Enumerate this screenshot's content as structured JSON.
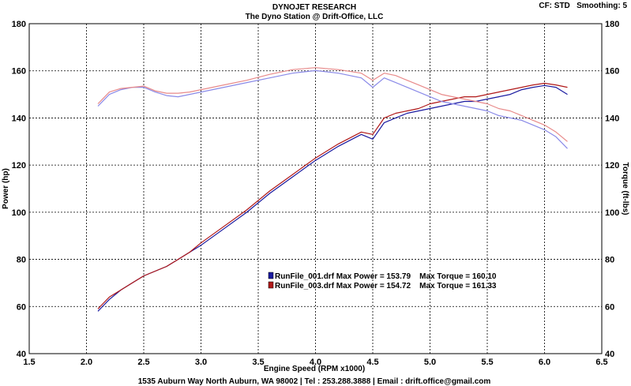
{
  "header": {
    "title": "DYNOJET RESEARCH",
    "subtitle": "The Dyno Station @ Drift-Office, LLC",
    "settings": "CF: STD   Smoothing: 5"
  },
  "footer": {
    "text": "1535 Auburn Way North Auburn, WA 98002 | Tel : 253.288.3888 | Email : drift.office@gmail.com"
  },
  "chart_data": {
    "type": "line",
    "xlabel": "Engine Speed (RPM x1000)",
    "ylabel": "Power (hp)",
    "y2label": "Torque (ft-lbs)",
    "xlim": [
      1.5,
      6.5
    ],
    "ylim": [
      40,
      180
    ],
    "y2lim": [
      40,
      180
    ],
    "x_ticks": [
      "1.5",
      "2.0",
      "2.5",
      "3.0",
      "3.5",
      "4.0",
      "4.5",
      "5.0",
      "5.5",
      "6.0",
      "6.5"
    ],
    "y_ticks": [
      "40",
      "60",
      "80",
      "100",
      "120",
      "140",
      "160",
      "180"
    ],
    "grid": true,
    "legend_entries": [
      "RunFile_001.drf Max Power = 153.79    Max Torque = 160.10",
      "RunFile_003.drf Max Power = 154.72    Max Torque = 161.33"
    ],
    "colors": {
      "run1": "#1a1aa0",
      "run1_torque": "#8a8ae8",
      "run3": "#b01818",
      "run3_torque": "#e88a8a"
    },
    "series": [
      {
        "name": "RunFile_001.drf",
        "quantity": "power",
        "x": [
          2.1,
          2.2,
          2.3,
          2.4,
          2.5,
          2.6,
          2.7,
          2.8,
          2.9,
          3.0,
          3.2,
          3.4,
          3.6,
          3.8,
          4.0,
          4.2,
          4.4,
          4.5,
          4.6,
          4.7,
          4.8,
          4.9,
          5.0,
          5.1,
          5.2,
          5.3,
          5.4,
          5.5,
          5.6,
          5.7,
          5.8,
          5.9,
          6.0,
          6.1,
          6.2
        ],
        "values": [
          58,
          63,
          67,
          70,
          73,
          75,
          77,
          80,
          83,
          86,
          93,
          100,
          108,
          115,
          122,
          128,
          133,
          131,
          138,
          140,
          142,
          143,
          144,
          145,
          146,
          147,
          147,
          148,
          149,
          150,
          152,
          153,
          153.79,
          153,
          150
        ]
      },
      {
        "name": "RunFile_003.drf",
        "quantity": "power",
        "x": [
          2.1,
          2.2,
          2.3,
          2.4,
          2.5,
          2.6,
          2.7,
          2.8,
          2.9,
          3.0,
          3.2,
          3.4,
          3.6,
          3.8,
          4.0,
          4.2,
          4.4,
          4.5,
          4.6,
          4.7,
          4.8,
          4.9,
          5.0,
          5.1,
          5.2,
          5.3,
          5.4,
          5.5,
          5.6,
          5.7,
          5.8,
          5.9,
          6.0,
          6.1,
          6.2
        ],
        "values": [
          59,
          64,
          67,
          70,
          73,
          75,
          77,
          80,
          83,
          87,
          94,
          101,
          109,
          116,
          123,
          129,
          134,
          133,
          140,
          142,
          143,
          144,
          146,
          147,
          148,
          149,
          149,
          150,
          151,
          152,
          153,
          154,
          154.72,
          154,
          153
        ]
      },
      {
        "name": "RunFile_001.drf",
        "quantity": "torque",
        "x": [
          2.1,
          2.2,
          2.3,
          2.4,
          2.5,
          2.6,
          2.7,
          2.8,
          2.9,
          3.0,
          3.2,
          3.4,
          3.6,
          3.8,
          4.0,
          4.2,
          4.4,
          4.5,
          4.6,
          4.7,
          4.8,
          4.9,
          5.0,
          5.1,
          5.2,
          5.3,
          5.4,
          5.5,
          5.6,
          5.7,
          5.8,
          5.9,
          6.0,
          6.1,
          6.2
        ],
        "values": [
          145,
          150,
          152,
          153,
          153,
          151,
          149.5,
          149,
          150,
          151,
          153,
          155,
          157,
          159,
          160.1,
          159,
          157,
          153,
          157,
          155,
          153,
          151,
          149,
          147,
          146,
          145,
          144,
          143,
          141,
          140,
          139,
          137,
          135,
          132,
          127
        ]
      },
      {
        "name": "RunFile_003.drf",
        "quantity": "torque",
        "x": [
          2.1,
          2.2,
          2.3,
          2.4,
          2.5,
          2.6,
          2.7,
          2.8,
          2.9,
          3.0,
          3.2,
          3.4,
          3.6,
          3.8,
          4.0,
          4.2,
          4.4,
          4.5,
          4.6,
          4.7,
          4.8,
          4.9,
          5.0,
          5.1,
          5.2,
          5.3,
          5.4,
          5.5,
          5.6,
          5.7,
          5.8,
          5.9,
          6.0,
          6.1,
          6.2
        ],
        "values": [
          146,
          151,
          152.5,
          153,
          153.5,
          151.5,
          150.5,
          150.5,
          151,
          152,
          154,
          156,
          158.5,
          160.5,
          161.33,
          160.5,
          159,
          156,
          159,
          158,
          156,
          154,
          152,
          150,
          149,
          148,
          147,
          146,
          144,
          143,
          141,
          139,
          137,
          134,
          130
        ]
      }
    ]
  }
}
